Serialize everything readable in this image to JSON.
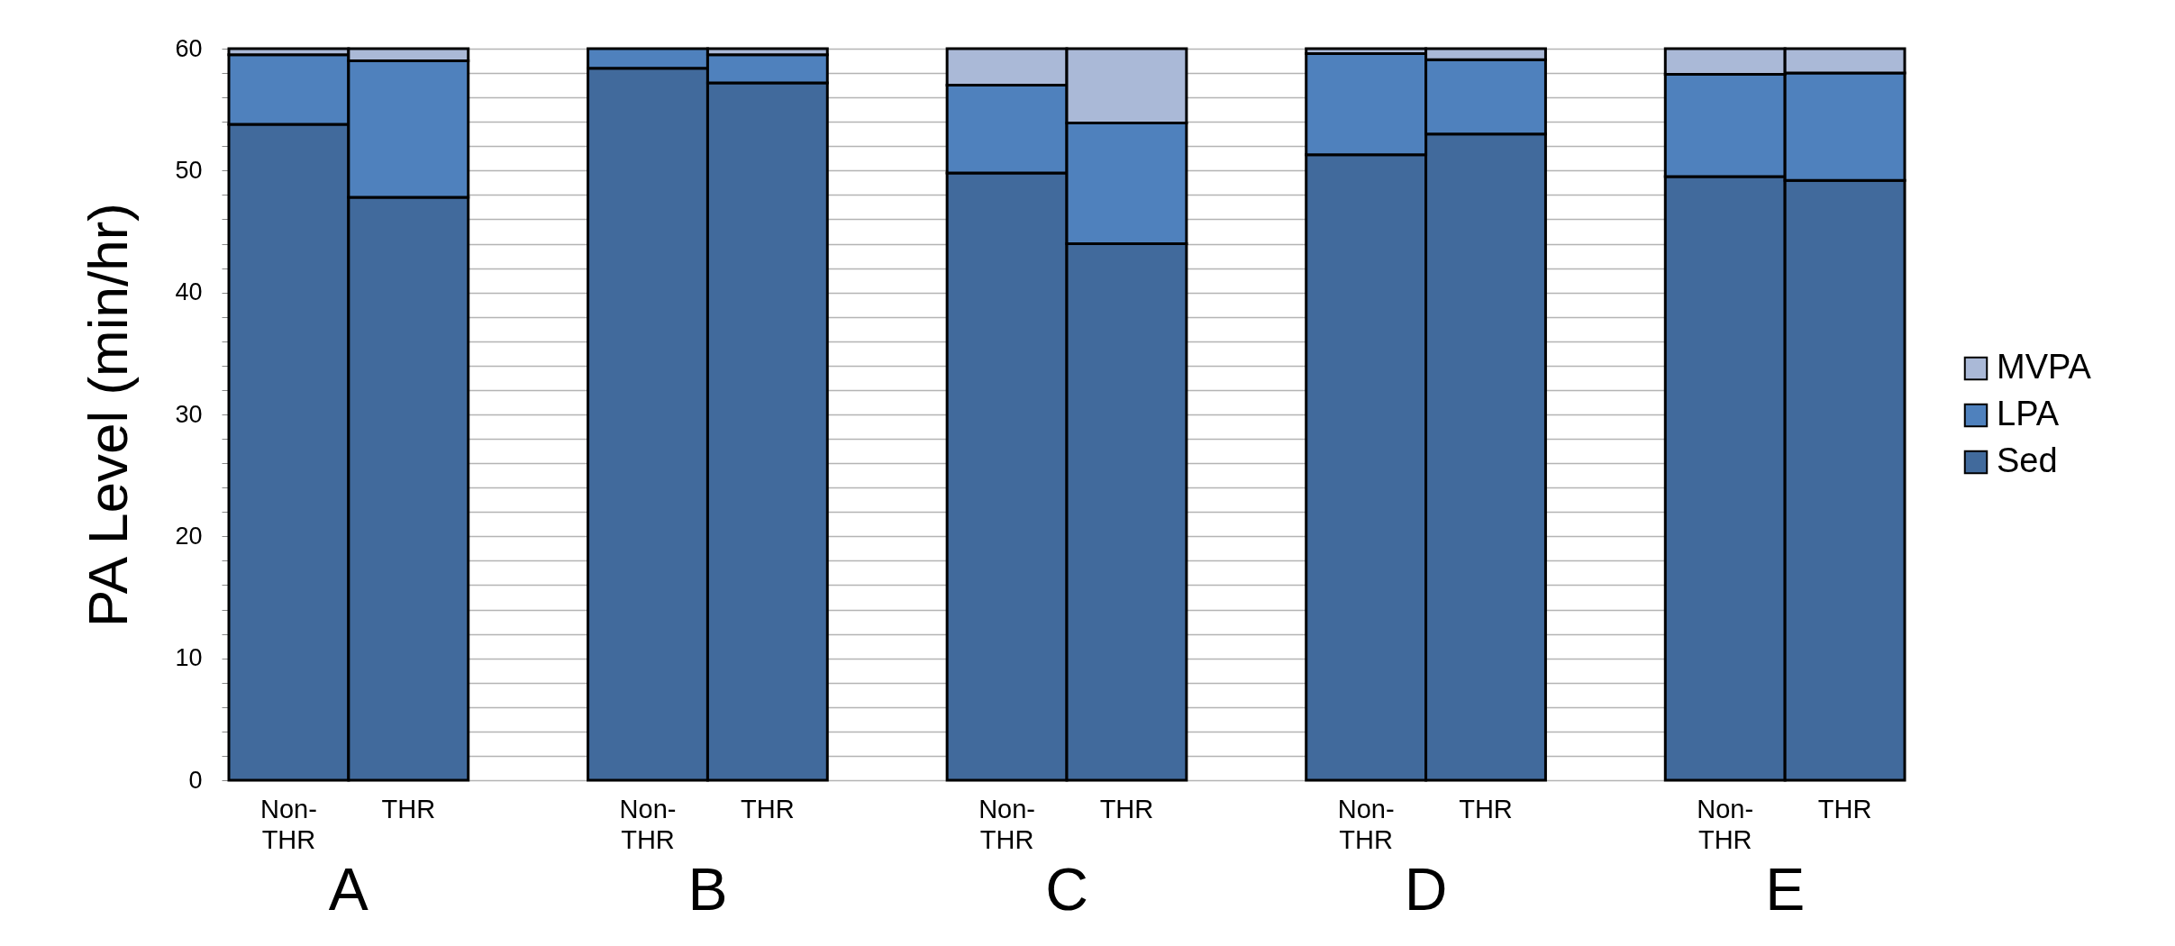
{
  "chart_data": {
    "type": "bar",
    "stacked": true,
    "ylabel": "PA Level (min/hr)",
    "categories": [
      "Non-THR",
      "THR",
      null,
      "Non-THR",
      "THR",
      null,
      "Non-THR",
      "THR",
      null,
      "Non-THR",
      "THR",
      null,
      "Non-THR",
      "THR"
    ],
    "series": [
      {
        "name": "Sed",
        "color": "#416a9c",
        "values": [
          53.8,
          47.8,
          null,
          58.4,
          57.2,
          null,
          49.8,
          44.0,
          null,
          51.3,
          53.0,
          null,
          49.5,
          49.2
        ]
      },
      {
        "name": "LPA",
        "color": "#4f81bd",
        "values": [
          5.7,
          11.2,
          null,
          1.6,
          2.3,
          null,
          7.2,
          9.9,
          null,
          8.3,
          6.1,
          null,
          8.4,
          8.8
        ]
      },
      {
        "name": "MVPA",
        "color": "#aab9d7",
        "values": [
          0.5,
          1.0,
          null,
          0,
          0.5,
          null,
          3.0,
          6.1,
          null,
          0.4,
          0.9,
          null,
          2.1,
          2.0
        ]
      }
    ],
    "annotations": [
      "A",
      "B",
      "C",
      "D",
      "E"
    ],
    "ylim": [
      0,
      60
    ],
    "yticks": [
      0,
      {
        "value": 2,
        "label": null
      },
      {
        "value": 4,
        "label": null
      },
      {
        "value": 6,
        "label": null
      },
      {
        "value": 8,
        "label": null
      },
      10,
      {
        "value": 12,
        "label": null
      },
      {
        "value": 14,
        "label": null
      },
      {
        "value": 16,
        "label": null
      },
      {
        "value": 18,
        "label": null
      },
      20,
      {
        "value": 22,
        "label": null
      },
      {
        "value": 24,
        "label": null
      },
      {
        "value": 26,
        "label": null
      },
      {
        "value": 28,
        "label": null
      },
      30,
      {
        "value": 32,
        "label": null
      },
      {
        "value": 34,
        "label": null
      },
      {
        "value": 36,
        "label": null
      },
      {
        "value": 38,
        "label": null
      },
      40,
      {
        "value": 42,
        "label": null
      },
      {
        "value": 44,
        "label": null
      },
      {
        "value": 46,
        "label": null
      },
      {
        "value": 48,
        "label": null
      },
      50,
      {
        "value": 52,
        "label": null
      },
      {
        "value": 54,
        "label": null
      },
      {
        "value": 56,
        "label": null
      },
      {
        "value": 58,
        "label": null
      },
      60
    ],
    "grid": true,
    "legend": "right"
  }
}
